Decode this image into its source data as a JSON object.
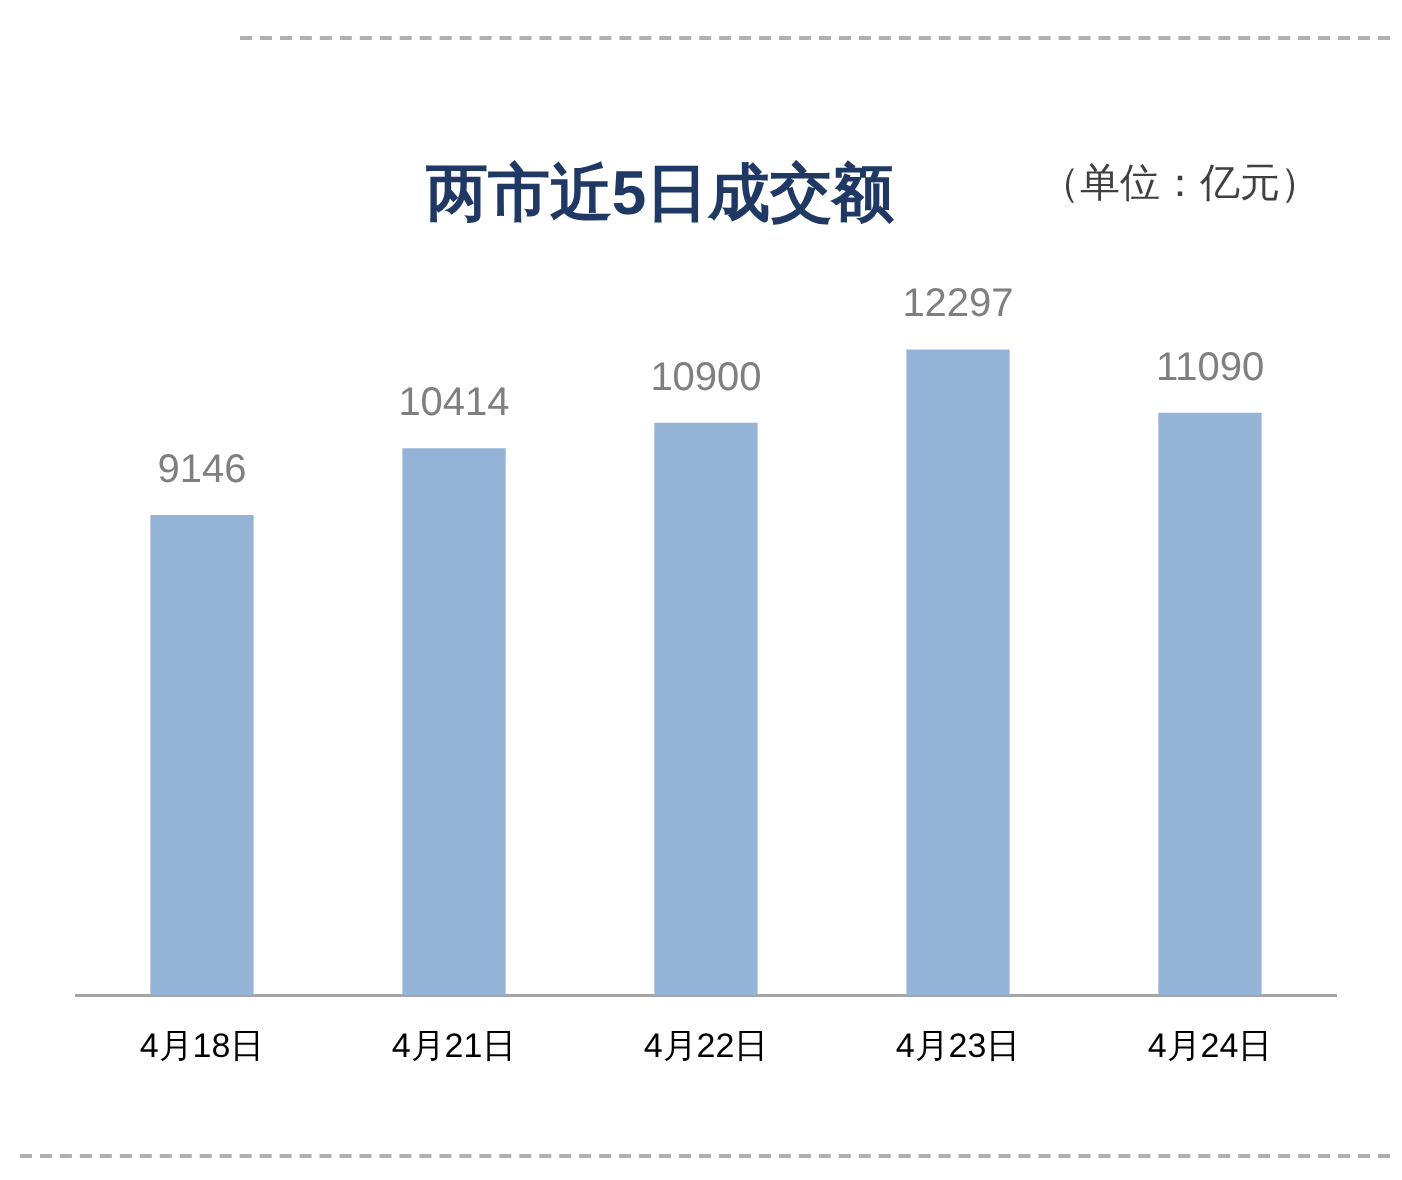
{
  "chart_data": {
    "type": "bar",
    "title": "两市近5日成交额",
    "annotations": [
      "（单位：亿元）"
    ],
    "categories": [
      "4月18日",
      "4月21日",
      "4月22日",
      "4月23日",
      "4月24日"
    ],
    "values": [
      9146,
      10414,
      10900,
      12297,
      11090
    ],
    "color": "#95b3d7",
    "tick_labels": "x",
    "grid": false,
    "legend": false,
    "data_labels": true
  }
}
